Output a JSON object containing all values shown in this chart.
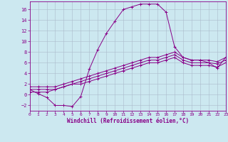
{
  "xlabel": "Windchill (Refroidissement éolien,°C)",
  "background_color": "#cce8f0",
  "grid_color": "#aabbcc",
  "line_color": "#880088",
  "x_ticks": [
    0,
    1,
    2,
    3,
    4,
    5,
    6,
    7,
    8,
    9,
    10,
    11,
    12,
    13,
    14,
    15,
    16,
    17,
    18,
    19,
    20,
    21,
    22,
    23
  ],
  "y_ticks": [
    -2,
    0,
    2,
    4,
    6,
    8,
    10,
    12,
    14,
    16
  ],
  "xlim": [
    0,
    23
  ],
  "ylim": [
    -3,
    17.5
  ],
  "series1_x": [
    0,
    1,
    2,
    3,
    4,
    5,
    6,
    7,
    8,
    9,
    10,
    11,
    12,
    13,
    14,
    15,
    16,
    17,
    18,
    19,
    20,
    21,
    22,
    23
  ],
  "series1_y": [
    1.0,
    0.2,
    -0.5,
    -2.0,
    -2.0,
    -2.2,
    -0.3,
    4.8,
    8.5,
    11.5,
    13.8,
    16.0,
    16.5,
    17.0,
    17.0,
    17.0,
    15.5,
    9.0,
    7.0,
    6.5,
    6.5,
    6.0,
    5.0,
    7.0
  ],
  "series2_x": [
    0,
    1,
    2,
    3,
    4,
    5,
    6,
    7,
    8,
    9,
    10,
    11,
    12,
    13,
    14,
    15,
    16,
    17,
    18,
    19,
    20,
    21,
    22,
    23
  ],
  "series2_y": [
    1.5,
    1.5,
    1.5,
    1.5,
    2.0,
    2.5,
    3.0,
    3.5,
    4.0,
    4.5,
    5.0,
    5.5,
    6.0,
    6.5,
    7.0,
    7.0,
    7.5,
    8.0,
    7.0,
    6.5,
    6.5,
    6.5,
    6.2,
    7.0
  ],
  "series3_x": [
    0,
    1,
    2,
    3,
    4,
    5,
    6,
    7,
    8,
    9,
    10,
    11,
    12,
    13,
    14,
    15,
    16,
    17,
    18,
    19,
    20,
    21,
    22,
    23
  ],
  "series3_y": [
    1.0,
    1.0,
    1.0,
    1.0,
    1.5,
    2.0,
    2.5,
    3.0,
    3.5,
    4.0,
    4.5,
    5.0,
    5.5,
    6.0,
    6.5,
    6.5,
    7.0,
    7.5,
    6.5,
    6.0,
    6.0,
    6.0,
    5.8,
    6.5
  ],
  "series4_x": [
    0,
    1,
    2,
    3,
    4,
    5,
    6,
    7,
    8,
    9,
    10,
    11,
    12,
    13,
    14,
    15,
    16,
    17,
    18,
    19,
    20,
    21,
    22,
    23
  ],
  "series4_y": [
    0.5,
    0.5,
    0.5,
    1.0,
    1.5,
    2.0,
    2.0,
    2.5,
    3.0,
    3.5,
    4.0,
    4.5,
    5.0,
    5.5,
    6.0,
    6.0,
    6.5,
    7.0,
    6.0,
    5.5,
    5.5,
    5.5,
    5.2,
    6.0
  ]
}
